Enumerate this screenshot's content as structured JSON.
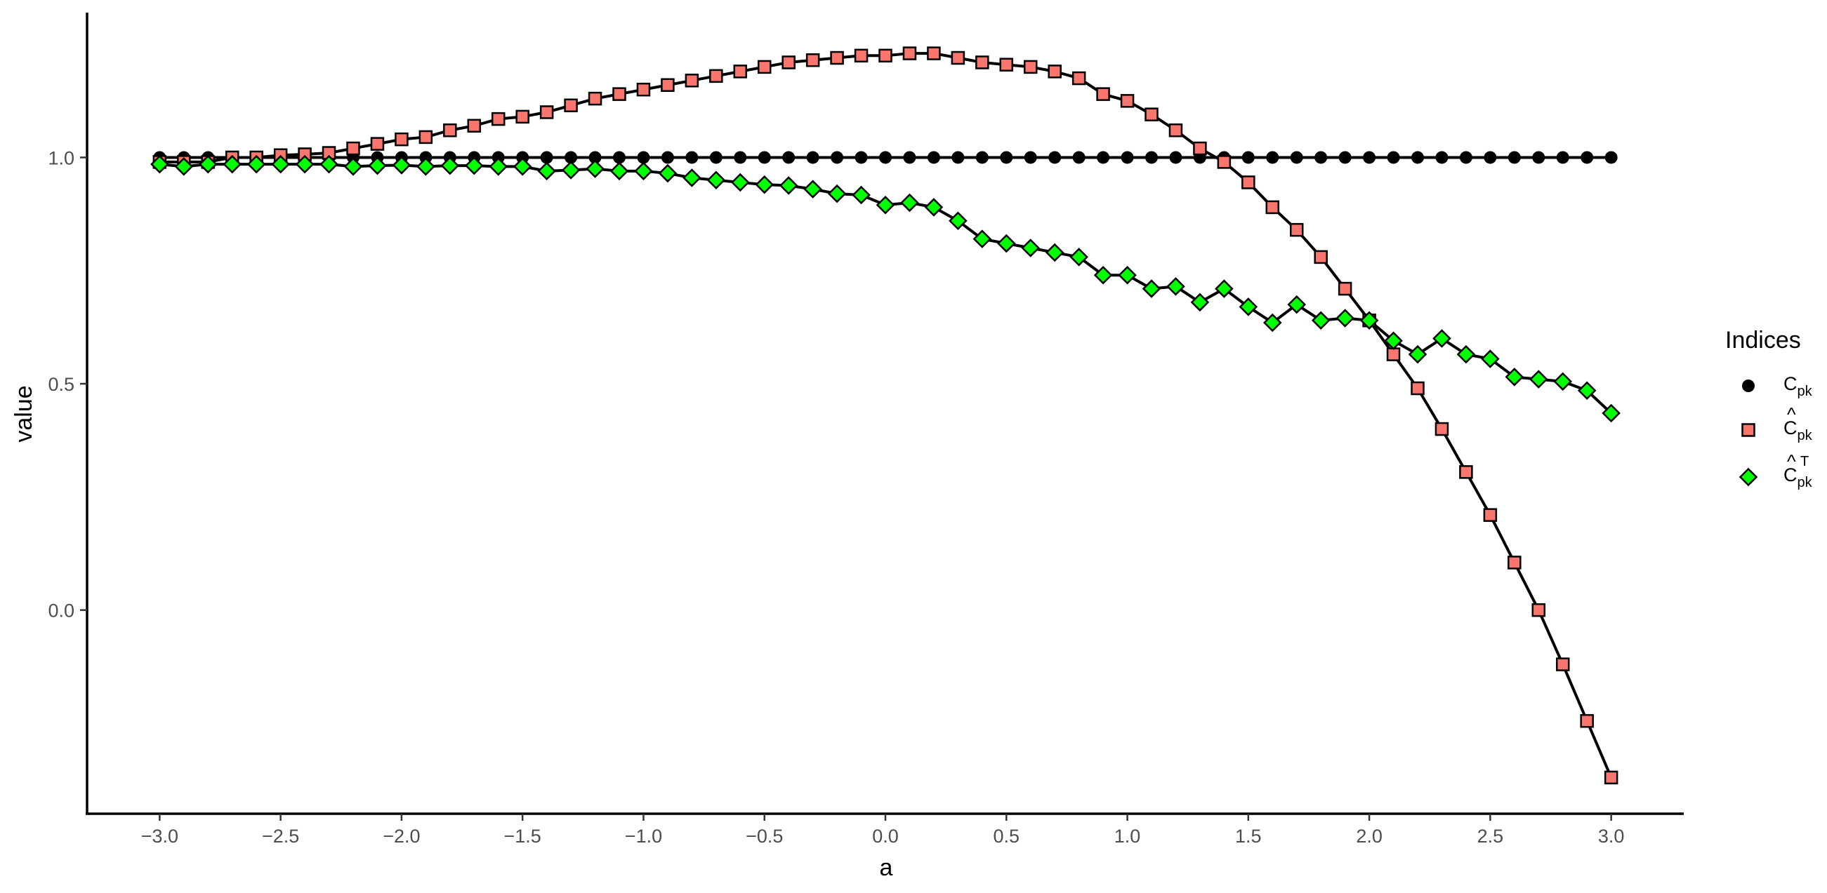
{
  "chart_data": {
    "type": "line",
    "xlabel": "a",
    "ylabel": "value",
    "xlim": [
      -3.3,
      3.3
    ],
    "ylim": [
      -0.45,
      1.32
    ],
    "x_ticks": [
      -3.0,
      -2.5,
      -2.0,
      -1.5,
      -1.0,
      -0.5,
      0.0,
      0.5,
      1.0,
      1.5,
      2.0,
      2.5,
      3.0
    ],
    "x_tick_labels": [
      "−3.0",
      "−2.5",
      "−2.0",
      "−1.5",
      "−1.0",
      "−0.5",
      "0.0",
      "0.5",
      "1.0",
      "1.5",
      "2.0",
      "2.5",
      "3.0"
    ],
    "y_ticks": [
      0.0,
      0.5,
      1.0
    ],
    "y_tick_labels": [
      "0.0",
      "0.5",
      "1.0"
    ],
    "grid": false,
    "legend": {
      "title": "Indices",
      "position": "right",
      "entries": [
        {
          "base": "C",
          "sub": "pk",
          "hat": "",
          "sup": "",
          "marker": "circle",
          "color": "#000000"
        },
        {
          "base": "C",
          "sub": "pk",
          "hat": "^",
          "sup": "",
          "marker": "square",
          "color": "#F8766D"
        },
        {
          "base": "C",
          "sub": "pk",
          "hat": "^",
          "sup": "T",
          "marker": "diamond",
          "color": "#00FF00"
        }
      ]
    },
    "x": [
      -3.0,
      -2.9,
      -2.8,
      -2.7,
      -2.6,
      -2.5,
      -2.4,
      -2.3,
      -2.2,
      -2.1,
      -2.0,
      -1.9,
      -1.8,
      -1.7,
      -1.6,
      -1.5,
      -1.4,
      -1.3,
      -1.2,
      -1.1,
      -1.0,
      -0.9,
      -0.8,
      -0.7,
      -0.6,
      -0.5,
      -0.4,
      -0.3,
      -0.2,
      -0.1,
      0.0,
      0.1,
      0.2,
      0.3,
      0.4,
      0.5,
      0.6,
      0.7,
      0.8,
      0.9,
      1.0,
      1.1,
      1.2,
      1.3,
      1.4,
      1.5,
      1.6,
      1.7,
      1.8,
      1.9,
      2.0,
      2.1,
      2.2,
      2.3,
      2.4,
      2.5,
      2.6,
      2.7,
      2.8,
      2.9,
      3.0
    ],
    "series": [
      {
        "marker": "circle",
        "color": "#000000",
        "values": [
          1.0,
          1.0,
          1.0,
          1.0,
          1.0,
          1.0,
          1.0,
          1.0,
          1.0,
          1.0,
          1.0,
          1.0,
          1.0,
          1.0,
          1.0,
          1.0,
          1.0,
          1.0,
          1.0,
          1.0,
          1.0,
          1.0,
          1.0,
          1.0,
          1.0,
          1.0,
          1.0,
          1.0,
          1.0,
          1.0,
          1.0,
          1.0,
          1.0,
          1.0,
          1.0,
          1.0,
          1.0,
          1.0,
          1.0,
          1.0,
          1.0,
          1.0,
          1.0,
          1.0,
          1.0,
          1.0,
          1.0,
          1.0,
          1.0,
          1.0,
          1.0,
          1.0,
          1.0,
          1.0,
          1.0,
          1.0,
          1.0,
          1.0,
          1.0,
          1.0,
          1.0
        ]
      },
      {
        "marker": "square",
        "color": "#F8766D",
        "values": [
          0.99,
          0.99,
          0.99,
          1.0,
          1.0,
          1.005,
          1.007,
          1.01,
          1.02,
          1.03,
          1.04,
          1.045,
          1.06,
          1.07,
          1.085,
          1.09,
          1.1,
          1.115,
          1.13,
          1.14,
          1.15,
          1.16,
          1.17,
          1.18,
          1.19,
          1.2,
          1.21,
          1.215,
          1.22,
          1.225,
          1.225,
          1.23,
          1.23,
          1.22,
          1.21,
          1.205,
          1.2,
          1.19,
          1.175,
          1.14,
          1.125,
          1.095,
          1.06,
          1.02,
          0.99,
          0.945,
          0.89,
          0.84,
          0.78,
          0.71,
          0.64,
          0.565,
          0.49,
          0.4,
          0.305,
          0.21,
          0.105,
          0.0,
          -0.12,
          -0.245,
          -0.37
        ]
      },
      {
        "marker": "diamond",
        "color": "#00FF00",
        "values": [
          0.985,
          0.98,
          0.985,
          0.985,
          0.985,
          0.985,
          0.985,
          0.985,
          0.98,
          0.982,
          0.983,
          0.98,
          0.982,
          0.982,
          0.98,
          0.98,
          0.97,
          0.972,
          0.975,
          0.97,
          0.97,
          0.965,
          0.955,
          0.95,
          0.945,
          0.94,
          0.938,
          0.93,
          0.92,
          0.917,
          0.895,
          0.9,
          0.89,
          0.86,
          0.82,
          0.81,
          0.8,
          0.79,
          0.78,
          0.74,
          0.74,
          0.71,
          0.715,
          0.68,
          0.71,
          0.67,
          0.635,
          0.675,
          0.64,
          0.645,
          0.64,
          0.595,
          0.565,
          0.6,
          0.565,
          0.555,
          0.515,
          0.51,
          0.505,
          0.485,
          0.435
        ]
      }
    ]
  }
}
